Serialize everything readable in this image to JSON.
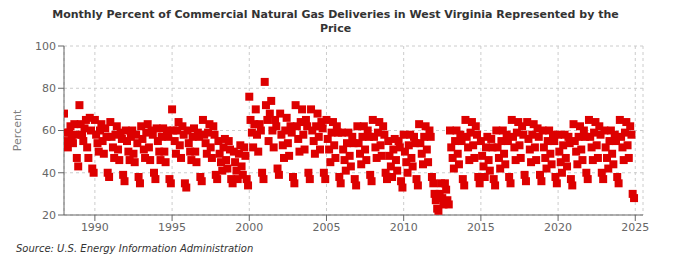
{
  "chart_data": {
    "type": "scatter",
    "title": "Monthly Percent of Commercial Natural Gas Deliveries in West Virginia Represented by the\nPrice",
    "ylabel": "Percent",
    "annotations": [
      "Source: U.S. Energy Information Administration"
    ],
    "color": "#dd0000",
    "marker": "square",
    "grid": true,
    "xlim": [
      1988.0,
      2025.5
    ],
    "ylim": [
      20,
      100
    ],
    "xticks": [
      1990,
      1995,
      2000,
      2005,
      2010,
      2015,
      2020,
      2025
    ],
    "yticks": [
      20,
      40,
      60,
      80,
      100
    ],
    "x": [
      1988.0,
      1988.08,
      1988.17,
      1988.25,
      1988.33,
      1988.42,
      1988.5,
      1988.58,
      1988.67,
      1988.75,
      1988.83,
      1988.92,
      1989.0,
      1989.08,
      1989.17,
      1989.25,
      1989.33,
      1989.42,
      1989.5,
      1989.58,
      1989.67,
      1989.75,
      1989.83,
      1989.92,
      1990.0,
      1990.08,
      1990.17,
      1990.25,
      1990.33,
      1990.42,
      1990.5,
      1990.58,
      1990.67,
      1990.75,
      1990.83,
      1990.92,
      1991.0,
      1991.08,
      1991.17,
      1991.25,
      1991.33,
      1991.42,
      1991.5,
      1991.58,
      1991.67,
      1991.75,
      1991.83,
      1991.92,
      1992.0,
      1992.08,
      1992.17,
      1992.25,
      1992.33,
      1992.42,
      1992.5,
      1992.58,
      1992.67,
      1992.75,
      1992.83,
      1992.92,
      1993.0,
      1993.08,
      1993.17,
      1993.25,
      1993.33,
      1993.42,
      1993.5,
      1993.58,
      1993.67,
      1993.75,
      1993.83,
      1993.92,
      1994.0,
      1994.08,
      1994.17,
      1994.25,
      1994.33,
      1994.42,
      1994.5,
      1994.58,
      1994.67,
      1994.75,
      1994.83,
      1994.92,
      1995.0,
      1995.08,
      1995.17,
      1995.25,
      1995.33,
      1995.42,
      1995.5,
      1995.58,
      1995.67,
      1995.75,
      1995.83,
      1995.92,
      1996.0,
      1996.08,
      1996.17,
      1996.25,
      1996.33,
      1996.42,
      1996.5,
      1996.58,
      1996.67,
      1996.75,
      1996.83,
      1996.92,
      1997.0,
      1997.08,
      1997.17,
      1997.25,
      1997.33,
      1997.42,
      1997.5,
      1997.58,
      1997.67,
      1997.75,
      1997.83,
      1997.92,
      1998.0,
      1998.08,
      1998.17,
      1998.25,
      1998.33,
      1998.42,
      1998.5,
      1998.58,
      1998.67,
      1998.75,
      1998.83,
      1998.92,
      1999.0,
      1999.08,
      1999.17,
      1999.25,
      1999.33,
      1999.42,
      1999.5,
      1999.58,
      1999.67,
      1999.75,
      1999.83,
      1999.92,
      2000.0,
      2000.08,
      2000.17,
      2000.25,
      2000.33,
      2000.42,
      2000.5,
      2000.58,
      2000.67,
      2000.75,
      2000.83,
      2000.92,
      2001.0,
      2001.08,
      2001.17,
      2001.25,
      2001.33,
      2001.42,
      2001.5,
      2001.58,
      2001.67,
      2001.75,
      2001.83,
      2001.92,
      2002.0,
      2002.08,
      2002.17,
      2002.25,
      2002.33,
      2002.42,
      2002.5,
      2002.58,
      2002.67,
      2002.75,
      2002.83,
      2002.92,
      2003.0,
      2003.08,
      2003.17,
      2003.25,
      2003.33,
      2003.42,
      2003.5,
      2003.58,
      2003.67,
      2003.75,
      2003.83,
      2003.92,
      2004.0,
      2004.08,
      2004.17,
      2004.25,
      2004.33,
      2004.42,
      2004.5,
      2004.58,
      2004.67,
      2004.75,
      2004.83,
      2004.92,
      2005.0,
      2005.08,
      2005.17,
      2005.25,
      2005.33,
      2005.42,
      2005.5,
      2005.58,
      2005.67,
      2005.75,
      2005.83,
      2005.92,
      2006.0,
      2006.08,
      2006.17,
      2006.25,
      2006.33,
      2006.42,
      2006.5,
      2006.58,
      2006.67,
      2006.75,
      2006.83,
      2006.92,
      2007.0,
      2007.08,
      2007.17,
      2007.25,
      2007.33,
      2007.42,
      2007.5,
      2007.58,
      2007.67,
      2007.75,
      2007.83,
      2007.92,
      2008.0,
      2008.08,
      2008.17,
      2008.25,
      2008.33,
      2008.42,
      2008.5,
      2008.58,
      2008.67,
      2008.75,
      2008.83,
      2008.92,
      2009.0,
      2009.08,
      2009.17,
      2009.25,
      2009.33,
      2009.42,
      2009.5,
      2009.58,
      2009.67,
      2009.75,
      2009.83,
      2009.92,
      2010.0,
      2010.08,
      2010.17,
      2010.25,
      2010.33,
      2010.42,
      2010.5,
      2010.58,
      2010.67,
      2010.75,
      2010.83,
      2010.92,
      2011.0,
      2011.08,
      2011.17,
      2011.25,
      2011.33,
      2011.42,
      2011.5,
      2011.58,
      2011.67,
      2011.75,
      2011.83,
      2011.92,
      2012.0,
      2012.08,
      2012.17,
      2012.25,
      2012.33,
      2012.42,
      2012.5,
      2012.58,
      2012.67,
      2012.75,
      2012.83,
      2012.92,
      2013.0,
      2013.08,
      2013.17,
      2013.25,
      2013.33,
      2013.42,
      2013.5,
      2013.58,
      2013.67,
      2013.75,
      2013.83,
      2013.92,
      2014.0,
      2014.08,
      2014.17,
      2014.25,
      2014.33,
      2014.42,
      2014.5,
      2014.58,
      2014.67,
      2014.75,
      2014.83,
      2014.92,
      2015.0,
      2015.08,
      2015.17,
      2015.25,
      2015.33,
      2015.42,
      2015.5,
      2015.58,
      2015.67,
      2015.75,
      2015.83,
      2015.92,
      2016.0,
      2016.08,
      2016.17,
      2016.25,
      2016.33,
      2016.42,
      2016.5,
      2016.58,
      2016.67,
      2016.75,
      2016.83,
      2016.92,
      2017.0,
      2017.08,
      2017.17,
      2017.25,
      2017.33,
      2017.42,
      2017.5,
      2017.58,
      2017.67,
      2017.75,
      2017.83,
      2017.92,
      2018.0,
      2018.08,
      2018.17,
      2018.25,
      2018.33,
      2018.42,
      2018.5,
      2018.58,
      2018.67,
      2018.75,
      2018.83,
      2018.92,
      2019.0,
      2019.08,
      2019.17,
      2019.25,
      2019.33,
      2019.42,
      2019.5,
      2019.58,
      2019.67,
      2019.75,
      2019.83,
      2019.92,
      2020.0,
      2020.08,
      2020.17,
      2020.25,
      2020.33,
      2020.42,
      2020.5,
      2020.58,
      2020.67,
      2020.75,
      2020.83,
      2020.92,
      2021.0,
      2021.08,
      2021.17,
      2021.25,
      2021.33,
      2021.42,
      2021.5,
      2021.58,
      2021.67,
      2021.75,
      2021.83,
      2021.92,
      2022.0,
      2022.08,
      2022.17,
      2022.25,
      2022.33,
      2022.42,
      2022.5,
      2022.58,
      2022.67,
      2022.75,
      2022.83,
      2022.92,
      2023.0,
      2023.08,
      2023.17,
      2023.25,
      2023.33,
      2023.42,
      2023.5,
      2023.58,
      2023.67,
      2023.75,
      2023.83,
      2023.92,
      2024.0,
      2024.08,
      2024.17,
      2024.25,
      2024.33,
      2024.42,
      2024.5,
      2024.58,
      2024.67,
      2024.75,
      2024.83,
      2024.92
    ],
    "values": [
      68,
      59,
      55,
      52,
      59,
      62,
      57,
      54,
      63,
      58,
      47,
      43,
      72,
      63,
      58,
      55,
      61,
      65,
      52,
      47,
      66,
      60,
      42,
      40,
      65,
      58,
      54,
      50,
      60,
      63,
      55,
      49,
      61,
      57,
      40,
      38,
      64,
      57,
      52,
      47,
      58,
      62,
      51,
      46,
      59,
      56,
      39,
      36,
      60,
      55,
      50,
      46,
      57,
      60,
      49,
      45,
      58,
      54,
      38,
      35,
      62,
      56,
      51,
      47,
      59,
      63,
      52,
      46,
      60,
      58,
      40,
      37,
      61,
      55,
      50,
      46,
      57,
      61,
      50,
      45,
      60,
      57,
      37,
      35,
      70,
      60,
      55,
      49,
      60,
      64,
      53,
      47,
      62,
      58,
      35,
      33,
      60,
      54,
      50,
      46,
      57,
      61,
      50,
      45,
      59,
      57,
      38,
      36,
      65,
      58,
      54,
      49,
      59,
      63,
      52,
      47,
      62,
      58,
      39,
      37,
      55,
      49,
      45,
      41,
      52,
      56,
      46,
      42,
      55,
      51,
      37,
      35,
      50,
      45,
      41,
      37,
      49,
      53,
      43,
      39,
      52,
      48,
      37,
      34,
      76,
      65,
      59,
      52,
      63,
      70,
      58,
      50,
      63,
      60,
      40,
      37,
      83,
      72,
      65,
      55,
      68,
      74,
      60,
      52,
      65,
      62,
      42,
      39,
      68,
      58,
      53,
      47,
      60,
      66,
      54,
      48,
      62,
      59,
      38,
      35,
      72,
      62,
      56,
      50,
      64,
      70,
      58,
      51,
      65,
      62,
      40,
      37,
      70,
      60,
      55,
      49,
      62,
      68,
      57,
      51,
      64,
      61,
      40,
      37,
      65,
      56,
      51,
      45,
      59,
      64,
      53,
      47,
      62,
      59,
      38,
      35,
      59,
      51,
      46,
      41,
      54,
      59,
      48,
      43,
      57,
      54,
      37,
      34,
      62,
      54,
      49,
      44,
      57,
      62,
      51,
      46,
      60,
      57,
      39,
      36,
      65,
      57,
      52,
      47,
      59,
      64,
      53,
      48,
      62,
      58,
      40,
      37,
      55,
      48,
      43,
      38,
      51,
      56,
      46,
      41,
      55,
      52,
      36,
      33,
      58,
      50,
      45,
      40,
      53,
      58,
      47,
      43,
      57,
      54,
      37,
      34,
      63,
      54,
      49,
      44,
      57,
      62,
      51,
      45,
      60,
      57,
      38,
      35,
      30,
      27,
      23,
      22,
      30,
      35,
      28,
      25,
      35,
      32,
      27,
      25,
      60,
      52,
      47,
      42,
      55,
      60,
      49,
      44,
      58,
      55,
      37,
      34,
      65,
      57,
      52,
      46,
      59,
      64,
      53,
      47,
      62,
      58,
      38,
      35,
      55,
      48,
      43,
      38,
      52,
      57,
      46,
      41,
      56,
      52,
      37,
      34,
      60,
      52,
      47,
      42,
      55,
      60,
      49,
      44,
      58,
      55,
      38,
      35,
      65,
      57,
      52,
      46,
      59,
      64,
      53,
      47,
      62,
      58,
      39,
      36,
      64,
      56,
      51,
      45,
      58,
      63,
      52,
      46,
      61,
      57,
      39,
      36,
      60,
      52,
      47,
      42,
      55,
      60,
      49,
      44,
      58,
      55,
      38,
      35,
      58,
      50,
      45,
      40,
      53,
      58,
      47,
      43,
      57,
      54,
      37,
      34,
      63,
      55,
      50,
      44,
      57,
      62,
      51,
      46,
      60,
      57,
      40,
      37,
      65,
      57,
      52,
      46,
      59,
      64,
      53,
      47,
      62,
      58,
      40,
      37,
      60,
      52,
      47,
      42,
      55,
      60,
      49,
      44,
      58,
      55,
      38,
      35,
      65,
      57,
      52,
      46,
      59,
      64,
      53,
      47,
      62,
      58,
      30,
      28
    ]
  }
}
